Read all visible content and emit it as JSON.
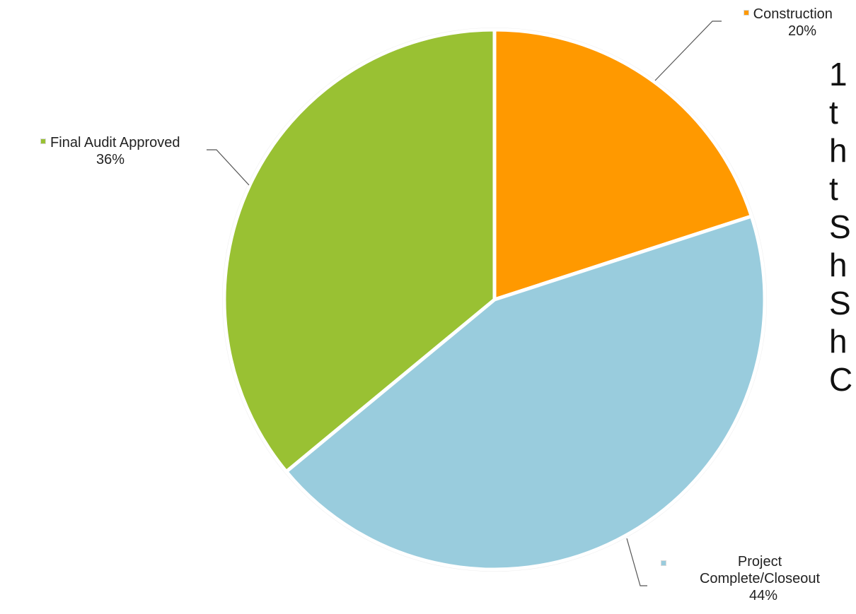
{
  "chart_data": {
    "type": "pie",
    "title": "",
    "start_angle_deg": 0,
    "direction": "clockwise",
    "slices": [
      {
        "label": "Construction",
        "percent_label": "20%",
        "value": 20,
        "color": "#FF9900"
      },
      {
        "label": "Project Complete/Closeout",
        "percent_label": "44%",
        "value": 44,
        "color": "#99CCDD"
      },
      {
        "label": "Final Audit Approved",
        "percent_label": "36%",
        "value": 36,
        "color": "#99C133"
      }
    ]
  },
  "side_text": {
    "lines": [
      "1",
      "t",
      "h",
      "t",
      "S",
      "h",
      "S",
      "h",
      "C"
    ]
  }
}
